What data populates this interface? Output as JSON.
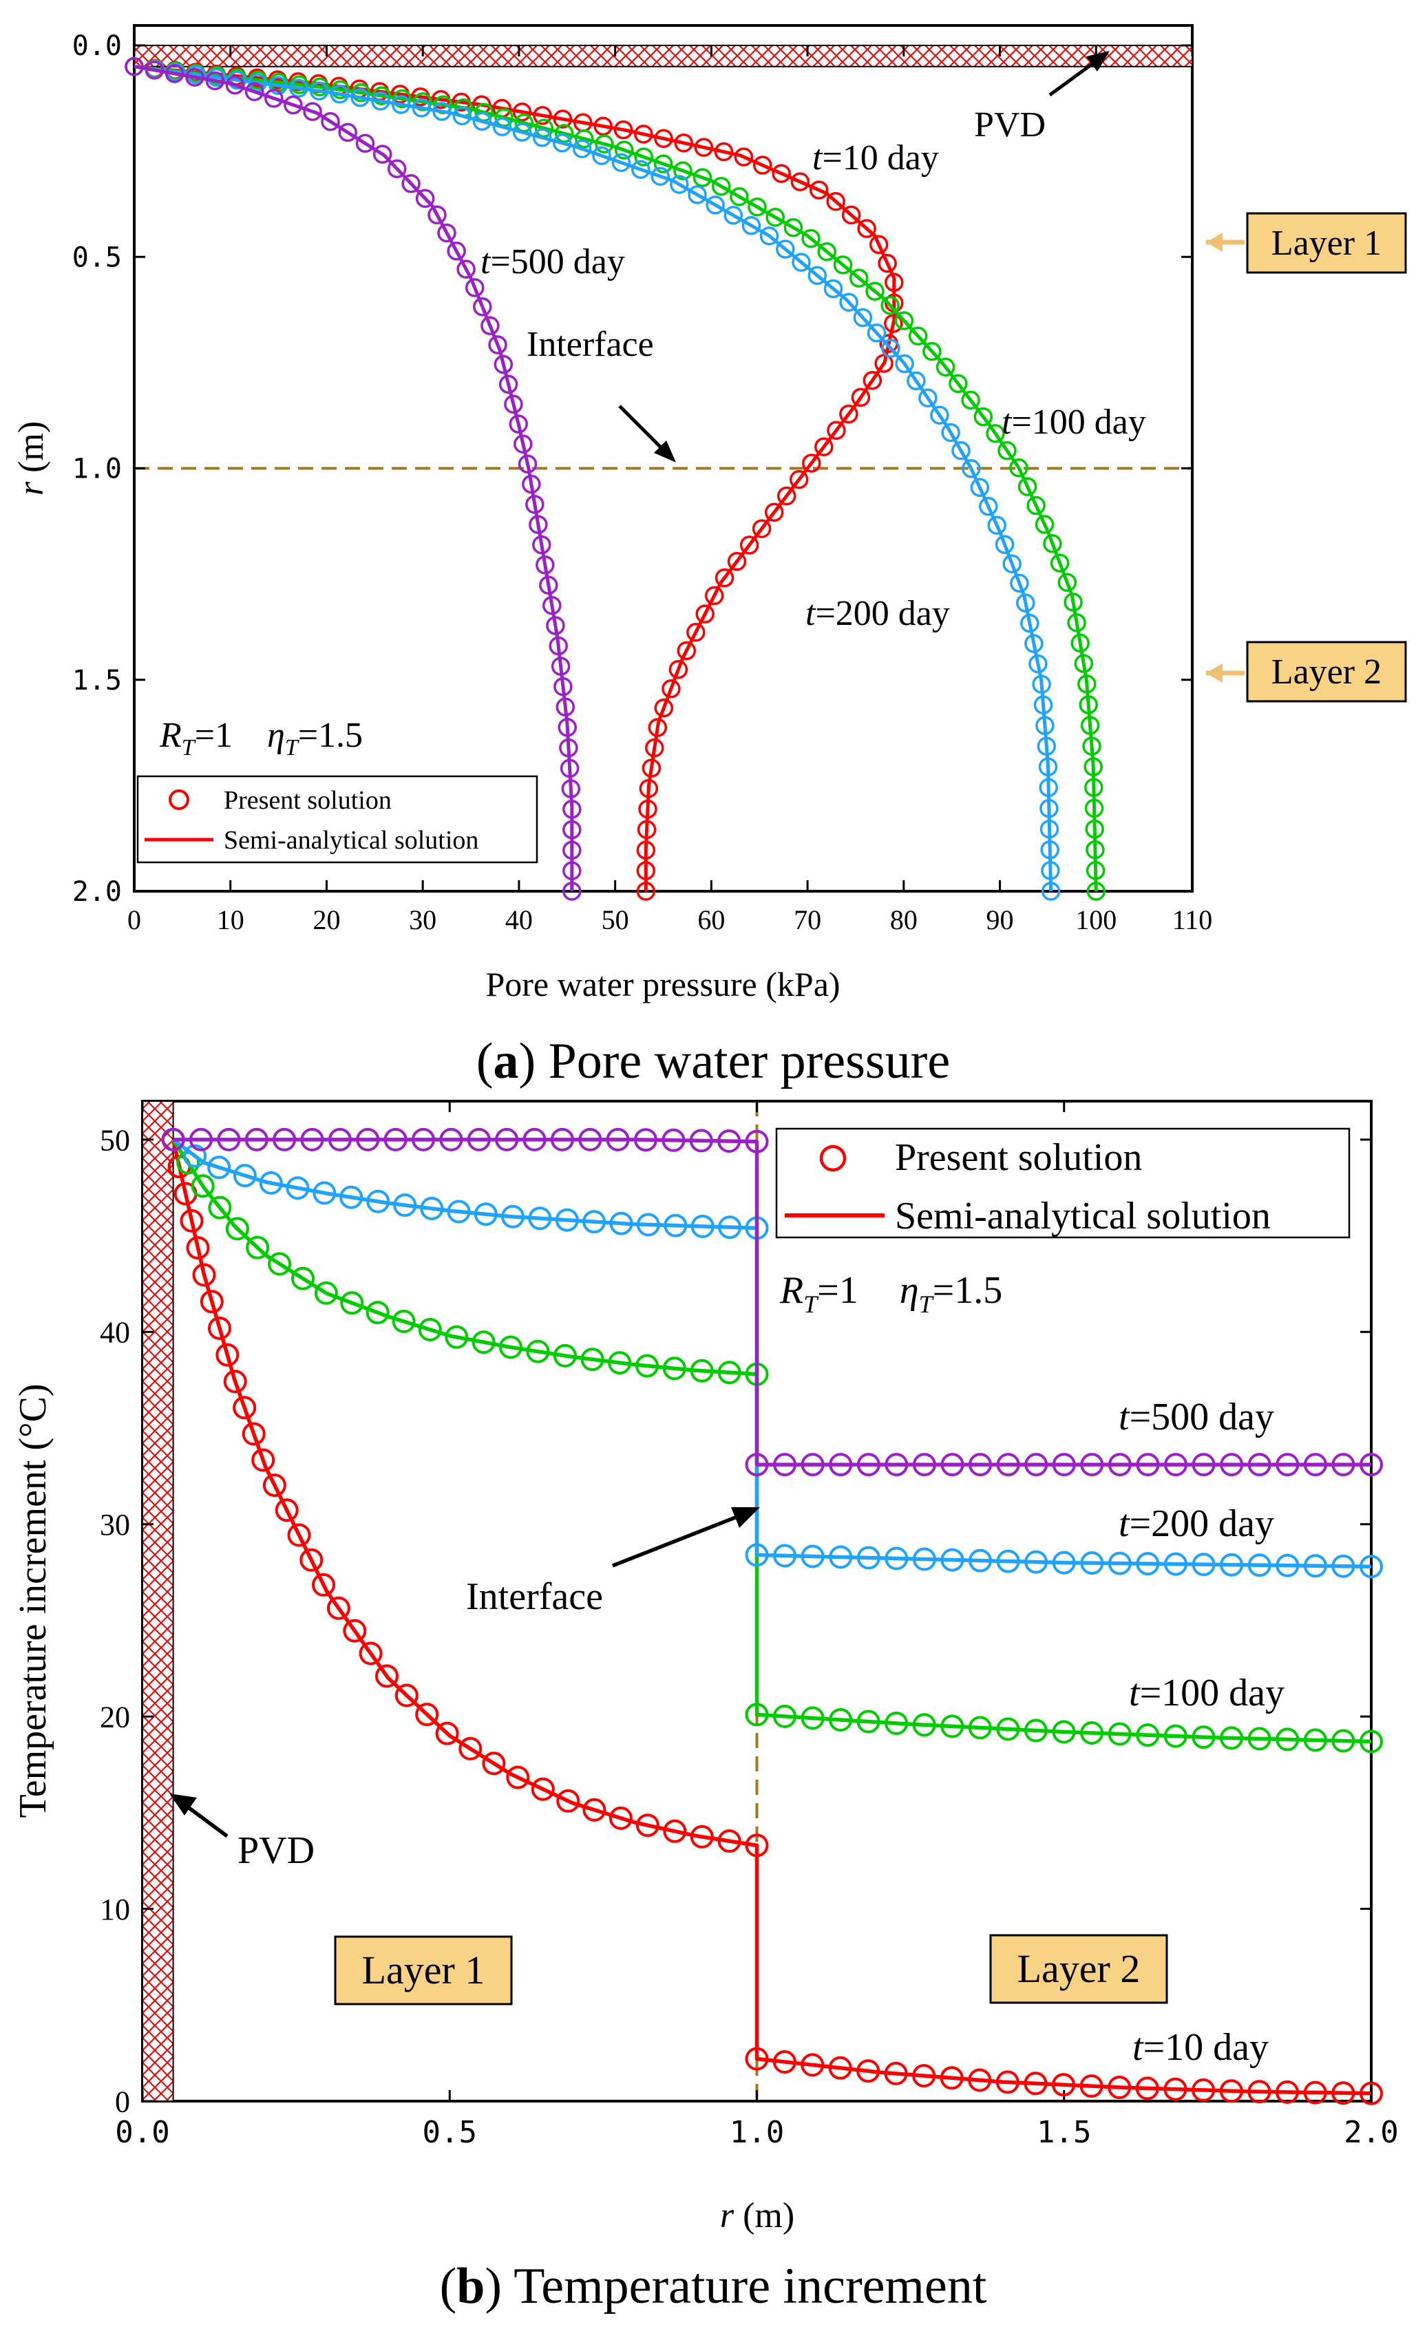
{
  "figure": {
    "caption_a_label": "a",
    "caption_a_text": " Pore water pressure",
    "caption_b_label": "b",
    "caption_b_text": " Temperature increment"
  },
  "chart_data": [
    {
      "type": "line",
      "id": "a",
      "title": "Pore water pressure",
      "xlabel": "Pore water pressure (kPa)",
      "ylabel_var": "r",
      "ylabel_unit": " (m)",
      "xlim": [
        0,
        110
      ],
      "ylim": [
        0,
        2
      ],
      "y_inverted": true,
      "x_ticks": [
        "0",
        "10",
        "20",
        "30",
        "40",
        "50",
        "60",
        "70",
        "80",
        "90",
        "100",
        "110"
      ],
      "y_ticks": [
        "0.0",
        "0.5",
        "1.0",
        "1.5",
        "2.0"
      ],
      "params": {
        "R_sym": "R",
        "R_sub": "T",
        "R_val": "=1",
        "eta_sym": "η",
        "eta_sub": "T",
        "eta_val": "=1.5"
      },
      "legend": {
        "markers_label": "Present solution",
        "line_label": "Semi-analytical solution",
        "position": "bottom-left"
      },
      "annotations": {
        "pvd": "PVD",
        "interface": "Interface",
        "layer1": "Layer 1",
        "layer2": "Layer 2"
      },
      "interface_r": 1.0,
      "pvd_r": 0.05,
      "series": [
        {
          "name": "t=10 day",
          "t_label": "=10 day",
          "color": "#ff0000",
          "points": [
            [
              0,
              0.05
            ],
            [
              19,
              0.09
            ],
            [
              36,
              0.14
            ],
            [
              51,
              0.2
            ],
            [
              63,
              0.26
            ],
            [
              72,
              0.35
            ],
            [
              77,
              0.45
            ],
            [
              79,
              0.55
            ],
            [
              79,
              0.65
            ],
            [
              78,
              0.75
            ],
            [
              75,
              0.85
            ],
            [
              70,
              1.0
            ],
            [
              66,
              1.12
            ],
            [
              61,
              1.27
            ],
            [
              57,
              1.45
            ],
            [
              54.5,
              1.6
            ],
            [
              53.5,
              1.75
            ],
            [
              53.2,
              1.9
            ],
            [
              53.2,
              2.0
            ]
          ]
        },
        {
          "name": "t=100 day",
          "t_label": "=100 day",
          "color": "#00cc00",
          "points": [
            [
              0,
              0.05
            ],
            [
              20,
              0.1
            ],
            [
              35,
              0.15
            ],
            [
              50,
              0.24
            ],
            [
              60,
              0.32
            ],
            [
              70,
              0.45
            ],
            [
              78,
              0.6
            ],
            [
              84,
              0.75
            ],
            [
              89,
              0.9
            ],
            [
              92,
              1.0
            ],
            [
              95,
              1.15
            ],
            [
              97.5,
              1.3
            ],
            [
              99,
              1.5
            ],
            [
              99.7,
              1.7
            ],
            [
              100,
              2.0
            ]
          ]
        },
        {
          "name": "t=200 day",
          "t_label": "=200 day",
          "color": "#1fa3ff",
          "points": [
            [
              0,
              0.05
            ],
            [
              20,
              0.11
            ],
            [
              33,
              0.16
            ],
            [
              46,
              0.24
            ],
            [
              56,
              0.32
            ],
            [
              66,
              0.45
            ],
            [
              74,
              0.6
            ],
            [
              80,
              0.75
            ],
            [
              84.5,
              0.9
            ],
            [
              87,
              1.0
            ],
            [
              90,
              1.15
            ],
            [
              92.5,
              1.3
            ],
            [
              94.3,
              1.5
            ],
            [
              95,
              1.7
            ],
            [
              95.3,
              2.0
            ]
          ]
        },
        {
          "name": "t=500 day",
          "t_label": "=500 day",
          "color": "#9b20c8",
          "points": [
            [
              0,
              0.05
            ],
            [
              10,
              0.09
            ],
            [
              19,
              0.16
            ],
            [
              26,
              0.26
            ],
            [
              31,
              0.38
            ],
            [
              35,
              0.55
            ],
            [
              38,
              0.72
            ],
            [
              40,
              0.9
            ],
            [
              41,
              1.0
            ],
            [
              42.5,
              1.2
            ],
            [
              44,
              1.4
            ],
            [
              45,
              1.6
            ],
            [
              45.5,
              1.8
            ],
            [
              45.5,
              2.0
            ]
          ]
        }
      ]
    },
    {
      "type": "line",
      "id": "b",
      "title": "Temperature increment",
      "xlabel_var": "r",
      "xlabel_unit": " (m)",
      "ylabel": "Temperature increment (°C)",
      "xlim": [
        0,
        2
      ],
      "ylim": [
        0,
        52
      ],
      "x_ticks": [
        "0.0",
        "0.5",
        "1.0",
        "1.5",
        "2.0"
      ],
      "y_ticks": [
        "0",
        "10",
        "20",
        "30",
        "40",
        "50"
      ],
      "params": {
        "R_sym": "R",
        "R_sub": "T",
        "R_val": "=1",
        "eta_sym": "η",
        "eta_sub": "T",
        "eta_val": "=1.5"
      },
      "legend": {
        "markers_label": "Present solution",
        "line_label": "Semi-analytical solution",
        "position": "top-right"
      },
      "annotations": {
        "pvd": "PVD",
        "interface": "Interface",
        "layer1": "Layer 1",
        "layer2": "Layer 2"
      },
      "interface_r": 1.0,
      "pvd_r": 0.05,
      "series": [
        {
          "name": "t=10 day",
          "t_label": "=10 day",
          "color": "#ff0000",
          "points": [
            [
              0.05,
              50
            ],
            [
              0.1,
              43
            ],
            [
              0.15,
              37.5
            ],
            [
              0.2,
              33
            ],
            [
              0.3,
              26.5
            ],
            [
              0.4,
              22
            ],
            [
              0.5,
              19
            ],
            [
              0.6,
              17
            ],
            [
              0.7,
              15.5
            ],
            [
              0.8,
              14.5
            ],
            [
              0.9,
              13.8
            ],
            [
              1.0,
              13.3
            ],
            [
              1.0,
              2.2
            ],
            [
              1.2,
              1.5
            ],
            [
              1.4,
              1.0
            ],
            [
              1.6,
              0.7
            ],
            [
              1.8,
              0.5
            ],
            [
              2.0,
              0.4
            ]
          ]
        },
        {
          "name": "t=100 day",
          "t_label": "=100 day",
          "color": "#00cc00",
          "points": [
            [
              0.05,
              50
            ],
            [
              0.1,
              47.5
            ],
            [
              0.15,
              45.5
            ],
            [
              0.2,
              44
            ],
            [
              0.3,
              42
            ],
            [
              0.4,
              40.8
            ],
            [
              0.5,
              39.8
            ],
            [
              0.6,
              39.2
            ],
            [
              0.7,
              38.7
            ],
            [
              0.8,
              38.3
            ],
            [
              0.9,
              38
            ],
            [
              1.0,
              37.8
            ],
            [
              1.0,
              20.1
            ],
            [
              1.25,
              19.6
            ],
            [
              1.5,
              19.2
            ],
            [
              1.75,
              18.9
            ],
            [
              2.0,
              18.7
            ]
          ]
        },
        {
          "name": "t=200 day",
          "t_label": "=200 day",
          "color": "#1fa3ff",
          "points": [
            [
              0.05,
              50
            ],
            [
              0.1,
              48.8
            ],
            [
              0.2,
              47.8
            ],
            [
              0.3,
              47.2
            ],
            [
              0.4,
              46.7
            ],
            [
              0.5,
              46.3
            ],
            [
              0.6,
              46
            ],
            [
              0.7,
              45.8
            ],
            [
              0.8,
              45.6
            ],
            [
              0.9,
              45.5
            ],
            [
              1.0,
              45.4
            ],
            [
              1.0,
              28.4
            ],
            [
              1.25,
              28.2
            ],
            [
              1.5,
              28
            ],
            [
              1.75,
              27.9
            ],
            [
              2.0,
              27.8
            ]
          ]
        },
        {
          "name": "t=500 day",
          "t_label": "=500 day",
          "color": "#9b20c8",
          "points": [
            [
              0.05,
              50
            ],
            [
              0.2,
              50
            ],
            [
              0.4,
              50
            ],
            [
              0.6,
              50
            ],
            [
              0.8,
              50
            ],
            [
              1.0,
              49.9
            ],
            [
              1.0,
              33.1
            ],
            [
              1.5,
              33.1
            ],
            [
              2.0,
              33.1
            ]
          ]
        }
      ]
    }
  ]
}
